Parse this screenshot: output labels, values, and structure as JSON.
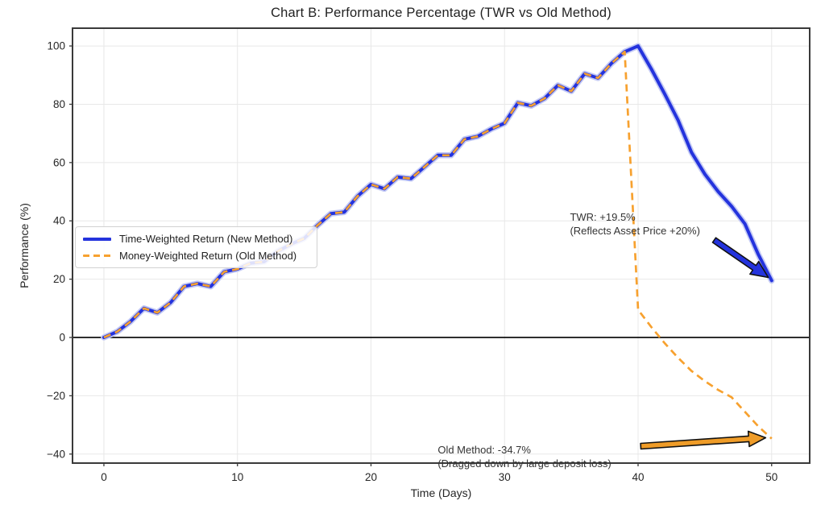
{
  "title": "Chart B: Performance Percentage (TWR vs Old Method)",
  "chart_data": {
    "type": "line",
    "title": "Chart B: Performance Percentage (TWR vs Old Method)",
    "xlabel": "Time (Days)",
    "ylabel": "Performance (%)",
    "xticks": [
      0,
      10,
      20,
      30,
      40,
      50
    ],
    "yticks": [
      -40,
      -20,
      0,
      20,
      40,
      60,
      80,
      100
    ],
    "xlim": [
      -2.35,
      52.85
    ],
    "ylim": [
      -43.1,
      106.1
    ],
    "grid": true,
    "zero_line": true,
    "grid_color": "#e8e8e8",
    "spine_color": "#3a3a3a",
    "zero_line_color": "#111111",
    "legend_position": "center-left",
    "x": [
      0,
      1,
      2,
      3,
      4,
      5,
      6,
      7,
      8,
      9,
      10,
      11,
      12,
      13,
      14,
      15,
      16,
      17,
      18,
      19,
      20,
      21,
      22,
      23,
      24,
      25,
      26,
      27,
      28,
      29,
      30,
      31,
      32,
      33,
      34,
      35,
      36,
      37,
      38,
      39,
      40,
      41,
      42,
      43,
      44,
      45,
      46,
      47,
      48,
      49,
      50
    ],
    "series": [
      {
        "name": "Time-Weighted Return (New Method)",
        "color": "#2433dd",
        "halo_color": "#c3c9f4",
        "style": "solid",
        "width": 4,
        "values": [
          0,
          2,
          5.5,
          10,
          8.5,
          12,
          17.5,
          18.5,
          17.5,
          22.5,
          23.5,
          25.5,
          26,
          29.5,
          32,
          34,
          38.5,
          42.5,
          43,
          48.5,
          52.5,
          51,
          55,
          54.5,
          58.5,
          62.5,
          62.5,
          68,
          69,
          71.5,
          73.5,
          80.5,
          79.5,
          82,
          86.5,
          84.5,
          90.5,
          89,
          94,
          98,
          100,
          92,
          83.5,
          74.5,
          63.5,
          56,
          50,
          45,
          39,
          28.5,
          19.5
        ]
      },
      {
        "name": "Money-Weighted Return (Old Method)",
        "color": "#f7a12f",
        "style": "dashed",
        "dash": "9 6",
        "width": 2.7,
        "values": [
          0,
          2,
          5.5,
          10,
          8.5,
          12,
          17.5,
          18.5,
          17.5,
          22.5,
          23.5,
          25.5,
          26,
          29.5,
          32,
          34,
          38.5,
          42.5,
          43,
          48.5,
          52.5,
          51,
          55,
          54.5,
          58.5,
          62.5,
          62.5,
          68,
          69,
          71.5,
          73.5,
          80.5,
          79.5,
          82,
          86.5,
          84.5,
          90.5,
          89,
          94,
          98,
          9.5,
          3.5,
          -2,
          -7,
          -11.5,
          -15,
          -18,
          -20.5,
          -25.5,
          -30.5,
          -34.7
        ]
      }
    ],
    "annotations": [
      {
        "id": "twr",
        "lines": [
          "TWR: +19.5%",
          "(Reflects Asset Price +20%)"
        ],
        "text_day": 34.9,
        "text_val": 43.3,
        "arrow": {
          "from": [
            45.7,
            33.4
          ],
          "to": [
            49.75,
            20.6
          ]
        },
        "arrow_color": "#2433dd",
        "arrow_outline": "#111111"
      },
      {
        "id": "old",
        "lines": [
          "Old Method: -34.7%",
          "(Dragged down by large deposit loss)"
        ],
        "text_day": 25.0,
        "text_val": -36.6,
        "arrow": {
          "from": [
            40.2,
            -37.3
          ],
          "to": [
            49.55,
            -34.4
          ]
        },
        "arrow_color": "#ef9c28",
        "arrow_outline": "#111111"
      }
    ]
  },
  "legend": {
    "items": [
      {
        "label": "Time-Weighted Return (New Method)"
      },
      {
        "label": "Money-Weighted Return (Old Method)"
      }
    ]
  }
}
